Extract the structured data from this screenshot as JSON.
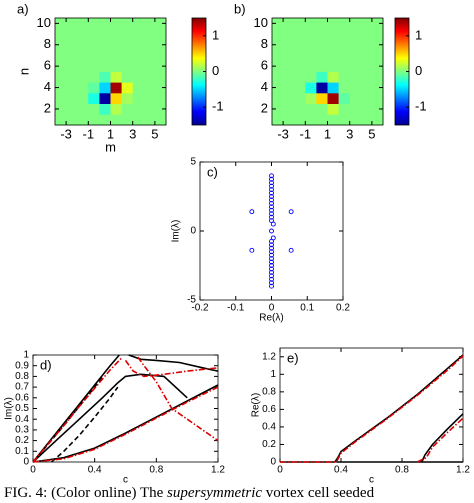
{
  "chart_data": [
    {
      "type": "heatmap",
      "panel_label": "a)",
      "x_label": "m",
      "y_label": "n",
      "x": [
        -3.5,
        -2.5,
        -1.5,
        -0.5,
        0.5,
        1.5,
        2.5,
        3.5,
        4.5,
        5.5
      ],
      "y": [
        1,
        2,
        3,
        4,
        5,
        6,
        7,
        8,
        9,
        10
      ],
      "z": [
        [
          0,
          0,
          0,
          0,
          0,
          0,
          0,
          0,
          0,
          0
        ],
        [
          0,
          0,
          0,
          0,
          -0.2,
          0.15,
          0,
          0,
          0,
          0
        ],
        [
          0,
          0,
          0,
          -0.3,
          -1.4,
          0.5,
          0.1,
          0,
          0,
          0
        ],
        [
          0,
          0,
          0,
          -0.1,
          -0.5,
          1.4,
          0.3,
          0,
          0,
          0
        ],
        [
          0,
          0,
          0,
          0,
          -0.15,
          0.2,
          0,
          0,
          0,
          0
        ],
        [
          0,
          0,
          0,
          0,
          0,
          0,
          0,
          0,
          0,
          0
        ],
        [
          0,
          0,
          0,
          0,
          0,
          0,
          0,
          0,
          0,
          0
        ],
        [
          0,
          0,
          0,
          0,
          0,
          0,
          0,
          0,
          0,
          0
        ],
        [
          0,
          0,
          0,
          0,
          0,
          0,
          0,
          0,
          0,
          0
        ],
        [
          0,
          0,
          0,
          0,
          0,
          0,
          0,
          0,
          0,
          0
        ]
      ],
      "xlim": [
        -4,
        6
      ],
      "ylim": [
        0.5,
        10.5
      ],
      "xticks": [
        -3,
        -1,
        1,
        3,
        5
      ],
      "yticks": [
        2,
        4,
        6,
        8,
        10
      ],
      "clim": [
        -1.5,
        1.5
      ],
      "colorbar_ticks": [
        -1,
        0,
        1
      ]
    },
    {
      "type": "heatmap",
      "panel_label": "b)",
      "x": [
        -3.5,
        -2.5,
        -1.5,
        -0.5,
        0.5,
        1.5,
        2.5,
        3.5,
        4.5,
        5.5
      ],
      "y": [
        1,
        2,
        3,
        4,
        5,
        6,
        7,
        8,
        9,
        10
      ],
      "z": [
        [
          0,
          0,
          0,
          0,
          0,
          0,
          0,
          0,
          0,
          0
        ],
        [
          0,
          0,
          0,
          0,
          0,
          0.2,
          0,
          0,
          0,
          0
        ],
        [
          0,
          0,
          0,
          0.1,
          0.5,
          1.4,
          -0.1,
          0,
          0,
          0
        ],
        [
          0,
          0,
          0,
          -0.3,
          -1.4,
          -0.5,
          0,
          0,
          0,
          0
        ],
        [
          0,
          0,
          0,
          0,
          -0.2,
          0.15,
          0,
          0,
          0,
          0
        ],
        [
          0,
          0,
          0,
          0,
          0,
          0,
          0,
          0,
          0,
          0
        ],
        [
          0,
          0,
          0,
          0,
          0,
          0,
          0,
          0,
          0,
          0
        ],
        [
          0,
          0,
          0,
          0,
          0,
          0,
          0,
          0,
          0,
          0
        ],
        [
          0,
          0,
          0,
          0,
          0,
          0,
          0,
          0,
          0,
          0
        ],
        [
          0,
          0,
          0,
          0,
          0,
          0,
          0,
          0,
          0,
          0
        ]
      ],
      "xlim": [
        -4,
        6
      ],
      "ylim": [
        0.5,
        10.5
      ],
      "xticks": [
        -3,
        -1,
        1,
        3,
        5
      ],
      "yticks": [
        2,
        4,
        6,
        8,
        10
      ],
      "clim": [
        -1.5,
        1.5
      ],
      "colorbar_ticks": [
        -1,
        0,
        1
      ]
    },
    {
      "type": "scatter",
      "panel_label": "c)",
      "x_label": "Re(λ)",
      "y_label": "Im(λ)",
      "series": [
        {
          "color": "#0000ff",
          "x": [
            0,
            0,
            0,
            0,
            0,
            0,
            0,
            0,
            0,
            0,
            0,
            0,
            0,
            0,
            0,
            0,
            0,
            0,
            0,
            0,
            0,
            0,
            0,
            0,
            0,
            0,
            0,
            0,
            0,
            -0.055,
            -0.055,
            0.055,
            0.055,
            0.005,
            0.005
          ],
          "y": [
            -4,
            -3.75,
            -3.5,
            -3.25,
            -3,
            -2.75,
            -2.5,
            -2.25,
            -2,
            -1.75,
            -1.5,
            -1.25,
            -1,
            -0.75,
            0,
            0.75,
            1,
            1.25,
            1.5,
            1.75,
            2,
            2.25,
            2.5,
            2.75,
            3,
            3.25,
            3.5,
            3.75,
            4,
            1.4,
            -1.4,
            1.4,
            -1.4,
            0.5,
            -0.5
          ]
        }
      ],
      "xlim": [
        -0.2,
        0.2
      ],
      "ylim": [
        -5,
        5
      ],
      "xticks": [
        -0.2,
        -0.1,
        0,
        0.1,
        0.2
      ],
      "yticks": [
        -5,
        0,
        5
      ]
    },
    {
      "type": "line",
      "panel_label": "d)",
      "x_label": "c",
      "y_label": "Im(λ)",
      "series": [
        {
          "color": "#000000",
          "dash": "solid",
          "x": [
            0,
            0.1,
            0.2,
            0.3,
            0.4,
            0.5,
            0.56
          ],
          "values": [
            0,
            0.18,
            0.36,
            0.54,
            0.72,
            0.9,
            1
          ]
        },
        {
          "color": "#000000",
          "dash": "solid",
          "x": [
            0,
            0.15,
            0.3,
            0.45,
            0.55,
            0.6,
            0.7,
            0.85,
            1
          ],
          "values": [
            0,
            0.2,
            0.4,
            0.6,
            0.74,
            0.8,
            0.82,
            0.8,
            0.6
          ]
        },
        {
          "color": "#000000",
          "dash": "dashed",
          "x": [
            0,
            0.1,
            0.2,
            0.3,
            0.4,
            0.45
          ],
          "values": [
            0,
            0.17,
            0.34,
            0.52,
            0.7,
            0.8
          ]
        },
        {
          "color": "#000000",
          "dash": "dashed",
          "x": [
            0.12,
            0.2,
            0.3,
            0.4,
            0.5,
            0.55
          ],
          "values": [
            0,
            0.1,
            0.25,
            0.42,
            0.6,
            0.7
          ]
        },
        {
          "color": "#000000",
          "dash": "solid",
          "x": [
            0,
            0.2,
            0.4,
            0.6,
            0.8,
            1,
            1.2
          ],
          "values": [
            0,
            0.04,
            0.13,
            0.27,
            0.42,
            0.57,
            0.72
          ]
        },
        {
          "color": "#000000",
          "dash": "solid",
          "x": [
            0.62,
            0.7,
            0.8,
            0.95,
            1.1,
            1.2
          ],
          "values": [
            1,
            0.96,
            0.95,
            0.93,
            0.88,
            0.85
          ]
        },
        {
          "color": "#dd0000",
          "dash": "dashdot",
          "x": [
            0,
            0.1,
            0.2,
            0.3,
            0.4,
            0.5,
            0.58
          ],
          "values": [
            0,
            0.17,
            0.34,
            0.52,
            0.69,
            0.86,
            0.98
          ]
        },
        {
          "color": "#dd0000",
          "dash": "dashdot",
          "x": [
            0,
            0.2,
            0.4,
            0.6,
            0.8,
            1,
            1.2
          ],
          "values": [
            0,
            0.03,
            0.12,
            0.26,
            0.41,
            0.56,
            0.7
          ]
        },
        {
          "color": "#dd0000",
          "dash": "dashdot",
          "x": [
            0.6,
            0.65,
            0.72,
            0.85,
            1,
            1.2
          ],
          "values": [
            0.95,
            0.85,
            0.8,
            0.82,
            0.85,
            0.88
          ]
        },
        {
          "color": "#dd0000",
          "dash": "dashdot",
          "x": [
            0.68,
            0.72,
            0.8,
            0.9,
            1.2
          ],
          "values": [
            0.98,
            0.9,
            0.75,
            0.5,
            0.2
          ]
        }
      ],
      "xlim": [
        0,
        1.2
      ],
      "ylim": [
        0,
        1
      ],
      "xticks": [
        0,
        0.4,
        0.8,
        1.2
      ],
      "yticks": [
        0,
        0.1,
        0.2,
        0.3,
        0.4,
        0.5,
        0.6,
        0.7,
        0.8,
        0.9,
        1
      ]
    },
    {
      "type": "line",
      "panel_label": "e)",
      "x_label": "c",
      "y_label": "Re(λ)",
      "series": [
        {
          "color": "#000000",
          "dash": "solid",
          "x": [
            0,
            0.36,
            0.38,
            0.4,
            0.5,
            0.7,
            0.9,
            1.1,
            1.2
          ],
          "values": [
            0,
            0,
            0.05,
            0.12,
            0.25,
            0.5,
            0.77,
            1.07,
            1.22
          ]
        },
        {
          "color": "#000000",
          "dash": "solid",
          "x": [
            0.37,
            1.2
          ],
          "values": [
            0,
            0
          ]
        },
        {
          "color": "#000000",
          "dash": "solid",
          "x": [
            0.93,
            0.95,
            1,
            1.1,
            1.2
          ],
          "values": [
            0,
            0.08,
            0.2,
            0.38,
            0.55
          ]
        },
        {
          "color": "#dd0000",
          "dash": "dashdot",
          "x": [
            0,
            0.37,
            0.4,
            0.5,
            0.7,
            0.9,
            1.1,
            1.2
          ],
          "values": [
            0,
            0,
            0.1,
            0.24,
            0.49,
            0.76,
            1.05,
            1.21
          ]
        },
        {
          "color": "#dd0000",
          "dash": "dashdot",
          "x": [
            0.9,
            0.96,
            1,
            1.1,
            1.2
          ],
          "values": [
            0,
            0.05,
            0.17,
            0.34,
            0.5
          ]
        }
      ],
      "xlim": [
        0,
        1.2
      ],
      "ylim": [
        0,
        1.3
      ],
      "xticks": [
        0,
        0.4,
        0.8,
        1.2
      ],
      "yticks": [
        0,
        0.2,
        0.4,
        0.6,
        0.8,
        1,
        1.2
      ]
    }
  ],
  "caption": {
    "start": "FIG. 4: (Color online) The ",
    "emphasis": "supersymmetric",
    "end": " vortex cell seeded"
  }
}
